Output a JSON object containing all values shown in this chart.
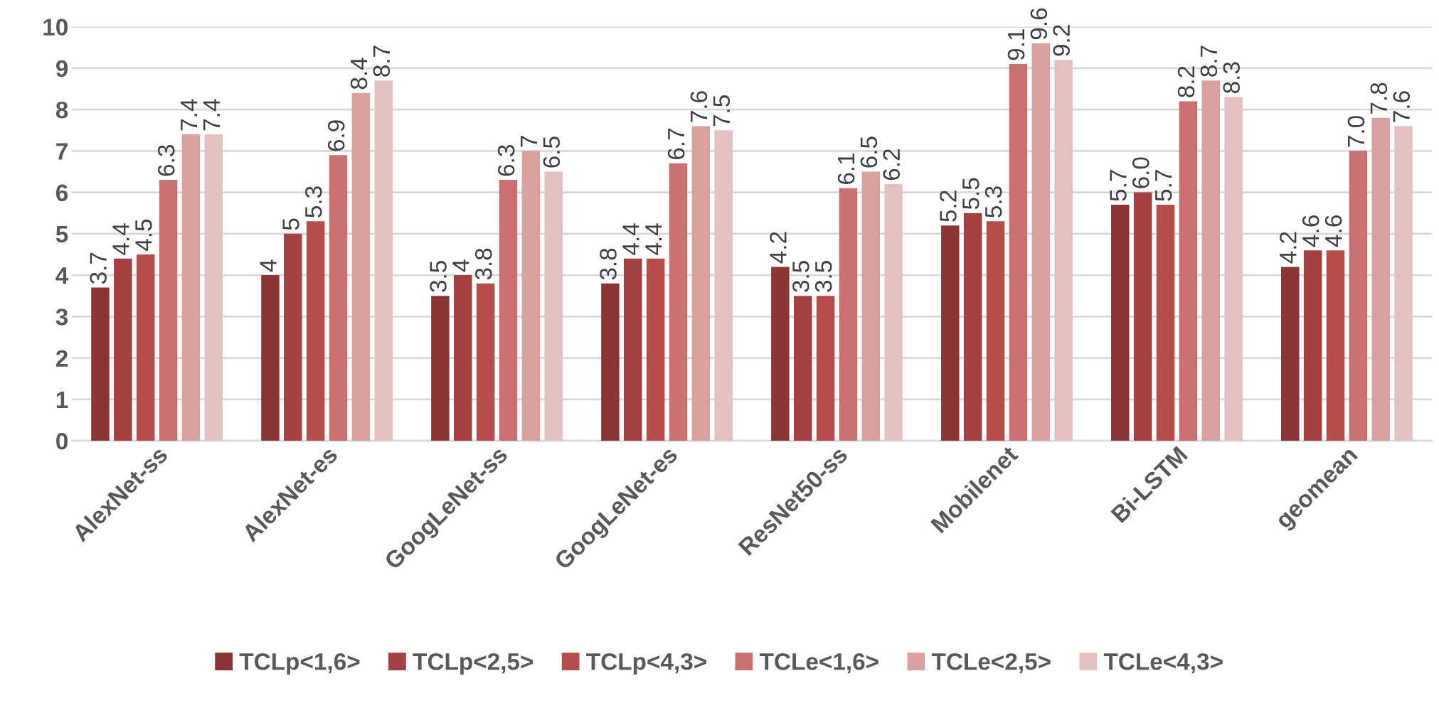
{
  "chart_data": {
    "type": "bar",
    "categories": [
      "AlexNet-ss",
      "AlexNet-es",
      "GoogLeNet-ss",
      "GoogLeNet-es",
      "ResNet50-ss",
      "Mobilenet",
      "Bi-LSTM",
      "geomean"
    ],
    "series": [
      {
        "name": "TCLp<1,6>",
        "color": "#8b3536",
        "values": [
          3.7,
          4,
          3.5,
          3.8,
          4.2,
          5.2,
          5.7,
          4.2
        ],
        "value_labels": [
          "3.7",
          "4",
          "3.5",
          "3.8",
          "4.2",
          "5.2",
          "5.7",
          "4.2"
        ]
      },
      {
        "name": "TCLp<2,5>",
        "color": "#a34140",
        "values": [
          4.4,
          5,
          4,
          4.4,
          3.5,
          5.5,
          6.0,
          4.6
        ],
        "value_labels": [
          "4.4",
          "5",
          "4",
          "4.4",
          "3.5",
          "5.5",
          "6.0",
          "4.6"
        ]
      },
      {
        "name": "TCLp<4,3>",
        "color": "#b64d4a",
        "values": [
          4.5,
          5.3,
          3.8,
          4.4,
          3.5,
          5.3,
          5.7,
          4.6
        ],
        "value_labels": [
          "4.5",
          "5.3",
          "3.8",
          "4.4",
          "3.5",
          "5.3",
          "5.7",
          "4.6"
        ]
      },
      {
        "name": "TCLe<1,6>",
        "color": "#c87170",
        "values": [
          6.3,
          6.9,
          6.3,
          6.7,
          6.1,
          9.1,
          8.2,
          7.0
        ],
        "value_labels": [
          "6.3",
          "6.9",
          "6.3",
          "6.7",
          "6.1",
          "9.1",
          "8.2",
          "7.0"
        ]
      },
      {
        "name": "TCLe<2,5>",
        "color": "#d9a0a0",
        "values": [
          7.4,
          8.4,
          7,
          7.6,
          6.5,
          9.6,
          8.7,
          7.8
        ],
        "value_labels": [
          "7.4",
          "8.4",
          "7",
          "7.6",
          "6.5",
          "9.6",
          "8.7",
          "7.8"
        ]
      },
      {
        "name": "TCLe<4,3>",
        "color": "#e4c0c1",
        "values": [
          7.4,
          8.7,
          6.5,
          7.5,
          6.2,
          9.2,
          8.3,
          7.6
        ],
        "value_labels": [
          "7.4",
          "8.7",
          "6.5",
          "7.5",
          "6.2",
          "9.2",
          "8.3",
          "7.6"
        ]
      }
    ],
    "ylim": [
      0,
      10
    ],
    "yticks": [
      0,
      1,
      2,
      3,
      4,
      5,
      6,
      7,
      8,
      9,
      10
    ],
    "grid": "y",
    "legend": "bottom"
  }
}
